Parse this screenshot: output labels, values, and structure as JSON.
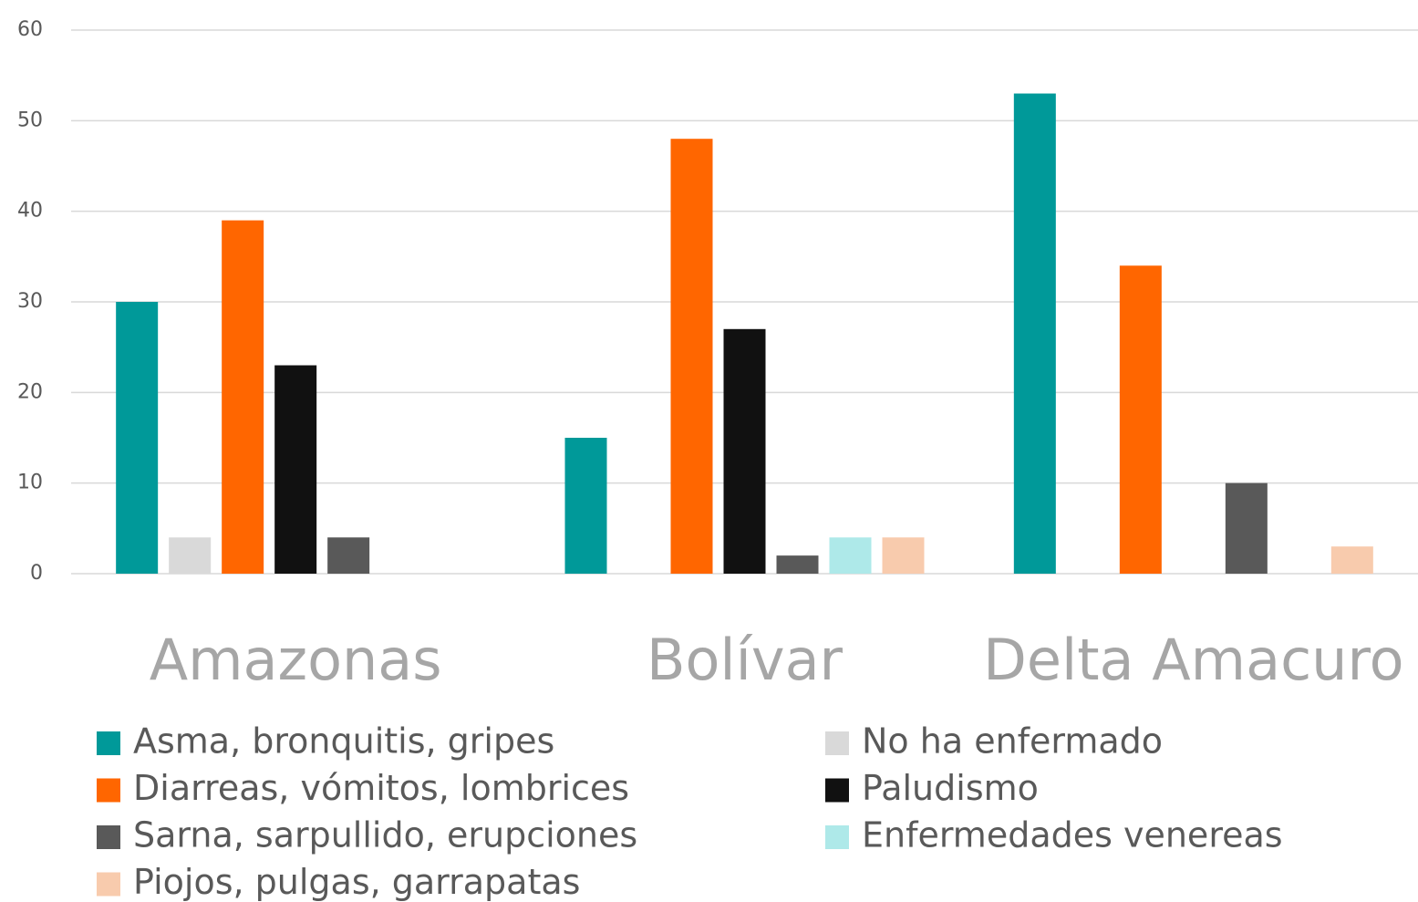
{
  "chart_data": {
    "type": "bar",
    "categories": [
      "Amazonas",
      "Bolívar",
      "Delta Amacuro"
    ],
    "series": [
      {
        "name": "Asma, bronquitis, gripes",
        "color": "#009999",
        "values": [
          30,
          15,
          53
        ]
      },
      {
        "name": "No ha enfermado",
        "color": "#d9d9d9",
        "values": [
          4,
          0,
          0
        ]
      },
      {
        "name": "Diarreas, vómitos, lombrices",
        "color": "#ff6600",
        "values": [
          39,
          48,
          34
        ]
      },
      {
        "name": "Paludismo",
        "color": "#111111",
        "values": [
          23,
          27,
          0
        ]
      },
      {
        "name": "Sarna, sarpullido, erupciones",
        "color": "#595959",
        "values": [
          4,
          2,
          10
        ]
      },
      {
        "name": "Enfermedades venereas",
        "color": "#aee9e9",
        "values": [
          0,
          4,
          0
        ]
      },
      {
        "name": "Piojos, pulgas, garrapatas",
        "color": "#f8cbad",
        "values": [
          0,
          4,
          3
        ]
      }
    ],
    "ylim": [
      0,
      60
    ],
    "yticks": [
      0,
      10,
      20,
      30,
      40,
      50,
      60
    ],
    "grid": true,
    "legend": "bottom"
  }
}
